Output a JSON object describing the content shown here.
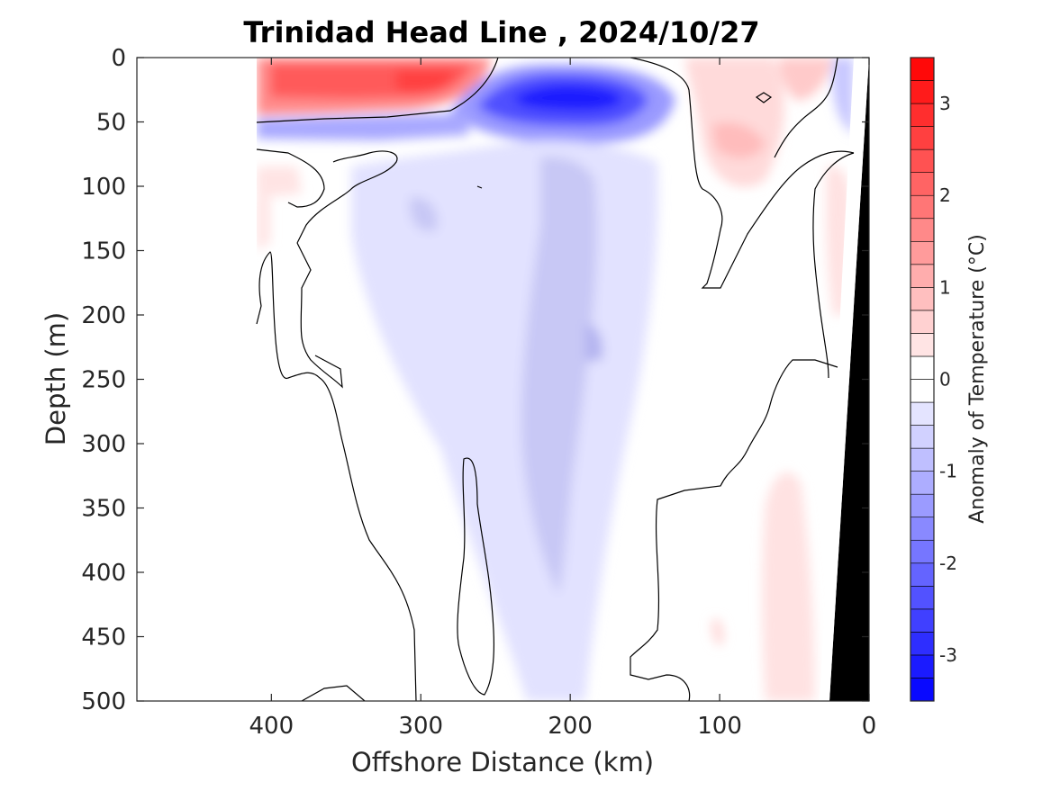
{
  "chart_data": {
    "type": "heatmap",
    "subtype": "filled-contour-section",
    "title": "Trinidad Head Line , 2024/10/27",
    "xlabel": "Offshore Distance (km)",
    "ylabel": "Depth (m)",
    "xlim": [
      490,
      0
    ],
    "ylim": [
      500,
      0
    ],
    "x_reversed": true,
    "y_reversed": true,
    "xticks": [
      400,
      300,
      200,
      100,
      0
    ],
    "yticks": [
      0,
      50,
      100,
      150,
      200,
      250,
      300,
      350,
      400,
      450,
      500
    ],
    "colorbar": {
      "label": "Anomaly of Temperature (°C)",
      "range": [
        -3.5,
        3.5
      ],
      "step": 0.25,
      "ticks": [
        -3,
        -2,
        -1,
        0,
        1,
        2,
        3
      ],
      "neg_color": "#0000ff",
      "pos_color": "#ff0000",
      "zero_color": "#ffffff"
    },
    "data_extent_x_km": [
      410,
      0
    ],
    "bathymetry_color": "#000000",
    "bathymetry": [
      [
        0,
        0
      ],
      [
        0,
        500
      ],
      [
        30,
        500
      ]
    ],
    "features": [
      {
        "name": "warm surface patch",
        "x": [
          410,
          270
        ],
        "depth": [
          0,
          45
        ],
        "anomaly_peak": 2.5
      },
      {
        "name": "cold subsurface core",
        "x": [
          270,
          130
        ],
        "depth": [
          10,
          80
        ],
        "anomaly_peak": -2.8
      },
      {
        "name": "cold layer",
        "x": [
          410,
          270
        ],
        "depth": [
          45,
          65
        ],
        "anomaly_peak": -1.0
      },
      {
        "name": "weak cold column",
        "x": [
          260,
          160
        ],
        "depth": [
          60,
          500
        ],
        "anomaly_peak": -0.5
      },
      {
        "name": "weak warm nearshore surface",
        "x": [
          130,
          30
        ],
        "depth": [
          0,
          150
        ],
        "anomaly_peak": 1.2
      },
      {
        "name": "weak warm nearshore deep",
        "x": [
          80,
          35
        ],
        "depth": [
          300,
          500
        ],
        "anomaly_peak": 0.4
      }
    ]
  }
}
